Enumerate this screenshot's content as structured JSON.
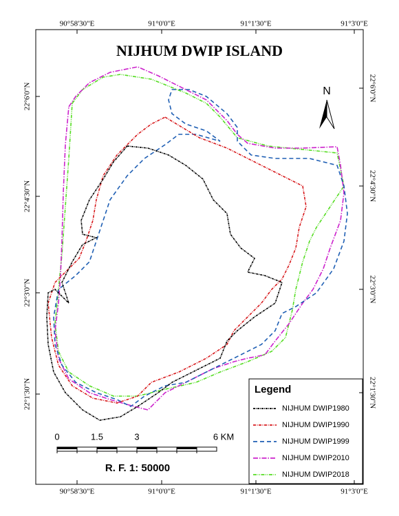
{
  "title": "NIJHUM DWIP ISLAND",
  "north": "N",
  "coordinates": {
    "top": [
      "90°58'30\"E",
      "91°0'0\"E",
      "91°1'30\"E",
      "91°3'0\"E"
    ],
    "bottom": [
      "90°58'30\"E",
      "91°0'0\"E",
      "91°1'30\"E",
      "91°3'0\"E"
    ],
    "left": [
      "22°6'0\"N",
      "22°4'30\"N",
      "22°3'0\"N",
      "22°1'30\"N"
    ],
    "right": [
      "22°6'0\"N",
      "22°4'30\"N",
      "22°3'0\"N",
      "22°1'30\"N"
    ]
  },
  "legend": {
    "title": "Legend",
    "items": [
      {
        "label": "NIJHUM DWIP1980",
        "color": "#000000"
      },
      {
        "label": "NIJHUM DWIP1990",
        "color": "#d7191c"
      },
      {
        "label": "NIJHUM DWIP1999",
        "color": "#1f5fb4"
      },
      {
        "label": "NIJHUM DWIP2010",
        "color": "#cc22cc"
      },
      {
        "label": "NIJHUM DWIP2018",
        "color": "#55dd22"
      }
    ]
  },
  "scale": {
    "labels": [
      "0",
      "1.5",
      "3",
      "6 KM"
    ],
    "ratio": "R. F. 1: 50000"
  }
}
